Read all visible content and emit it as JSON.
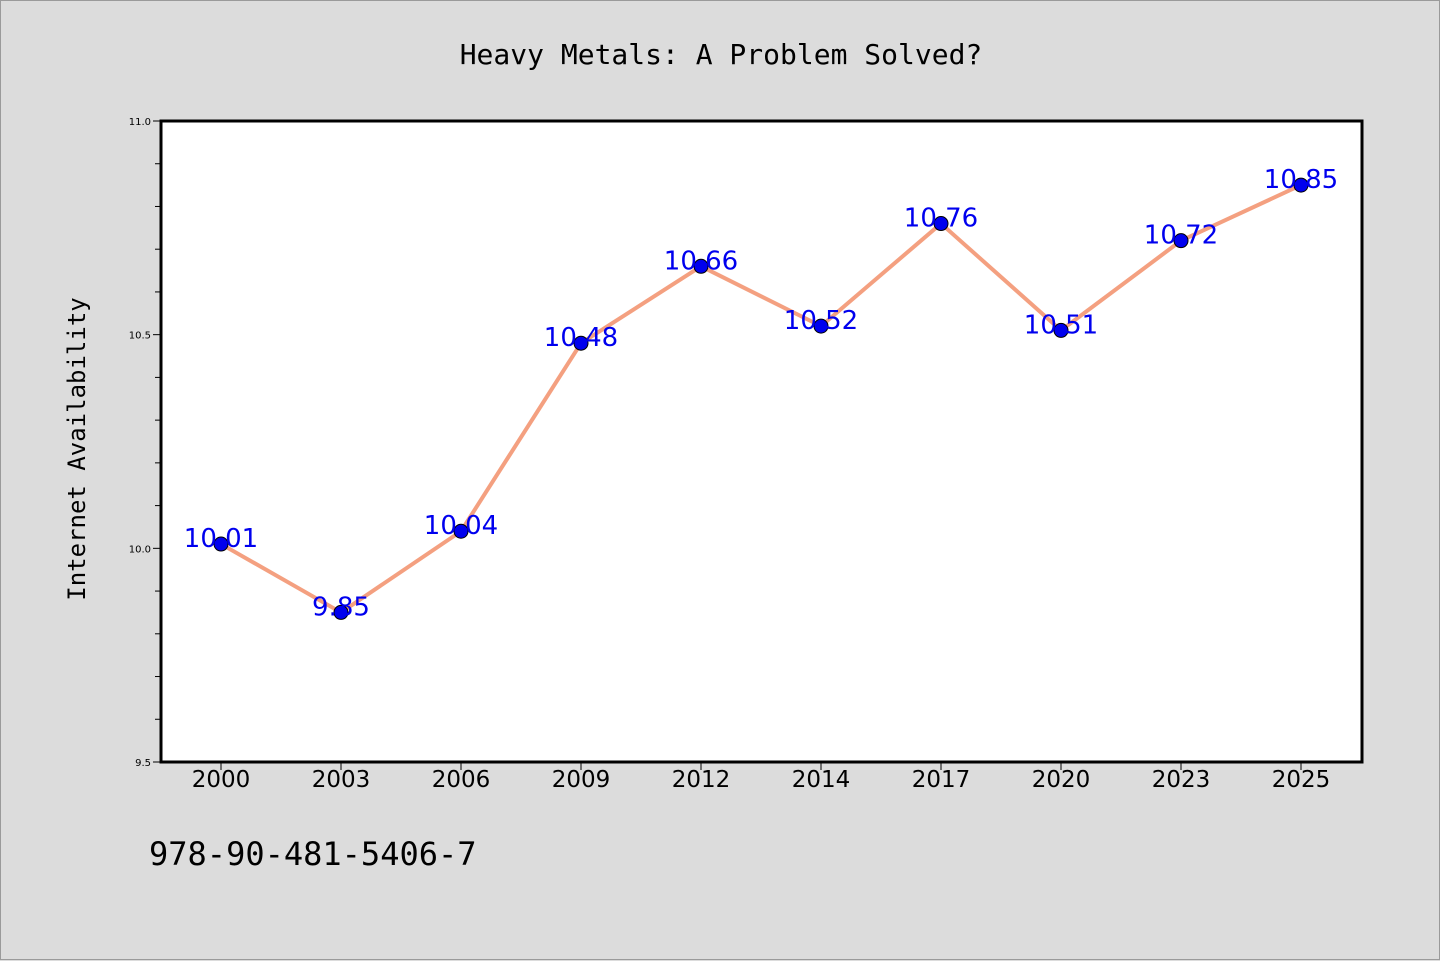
{
  "colors": {
    "background": "#dcdcdc",
    "plot_background": "#ffffff",
    "line": "#f4a080",
    "marker": "#0000ee",
    "data_label": "#0000ee"
  },
  "footer": {
    "isbn": "978-90-481-5406-7"
  },
  "chart_data": {
    "type": "line",
    "title": "Heavy Metals: A Problem Solved?",
    "xlabel": "",
    "ylabel": "Internet Availability",
    "categories": [
      "2000",
      "2003",
      "2006",
      "2009",
      "2012",
      "2014",
      "2017",
      "2020",
      "2023",
      "2025"
    ],
    "series": [
      {
        "values": [
          10.01,
          9.85,
          10.04,
          10.48,
          10.66,
          10.52,
          10.76,
          10.51,
          10.72,
          10.85
        ],
        "labels": [
          "10.01",
          "9.85",
          "10.04",
          "10.48",
          "10.66",
          "10.52",
          "10.76",
          "10.51",
          "10.72",
          "10.85"
        ]
      }
    ],
    "ylim": [
      9.5,
      11.0
    ],
    "yticks": [
      "9.5",
      "10.0",
      "10.5",
      "11.0"
    ],
    "grid": false,
    "legend": "none"
  }
}
